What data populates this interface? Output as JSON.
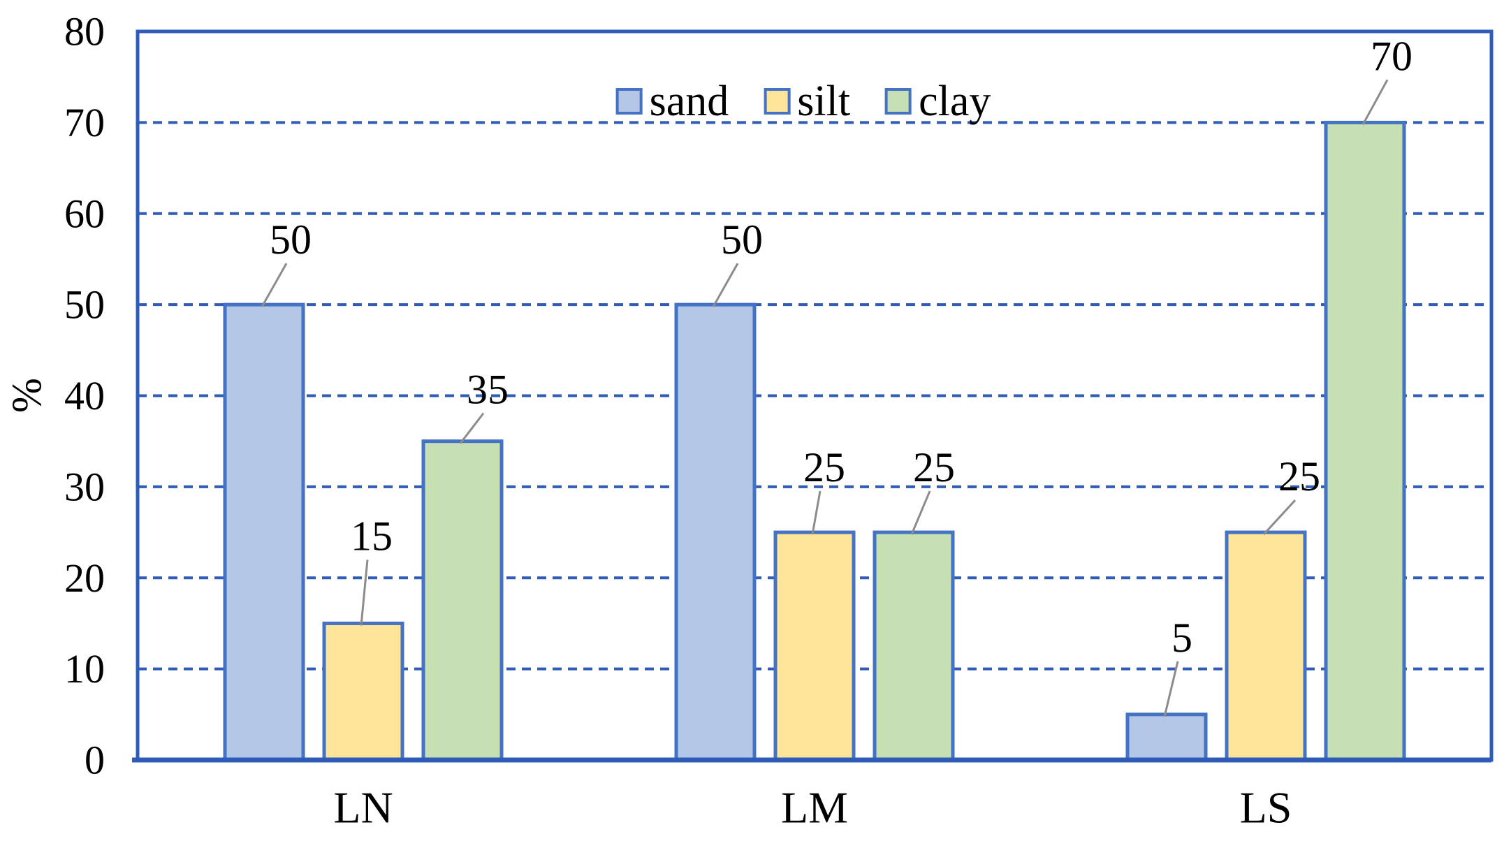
{
  "chart_data": {
    "type": "bar",
    "title": "",
    "ylabel": "%",
    "categories": [
      "LN",
      "LM",
      "LS"
    ],
    "series": [
      {
        "name": "sand",
        "color": "#B4C7E7",
        "values": [
          50,
          50,
          5
        ]
      },
      {
        "name": "silt",
        "color": "#FFE599",
        "values": [
          15,
          25,
          25
        ]
      },
      {
        "name": "clay",
        "color": "#C6E0B4",
        "values": [
          35,
          25,
          70
        ]
      }
    ],
    "ylim": [
      0,
      80
    ],
    "ytick_step": 10,
    "yticks": [
      "0",
      "10",
      "20",
      "30",
      "40",
      "50",
      "60",
      "70",
      "80"
    ],
    "grid": "horizontal-dashed",
    "legend_position": "top-center",
    "data_labels": "values-with-leader-lines",
    "colors": {
      "axis_and_grid": "#2E5CB8",
      "bar_border": "#4472C4",
      "leader_line": "#8C8C8C",
      "text": "#000000",
      "background": "#FFFFFF"
    }
  }
}
